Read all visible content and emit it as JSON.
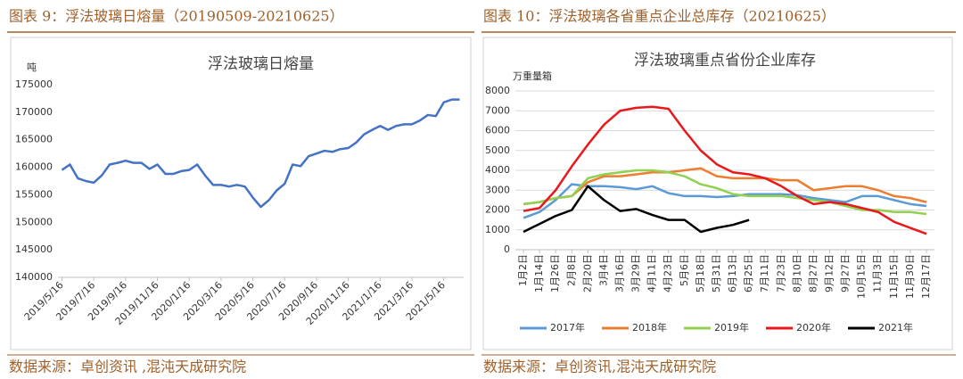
{
  "chart_data": [
    {
      "type": "line",
      "caption": "图表 9：浮法玻璃日熔量（20190509-20210625）",
      "title": "浮法玻璃日熔量",
      "y_label": "吨",
      "source": "数据来源：卓创资讯 ,混沌天成研究院",
      "categories": [
        "2019/5/16",
        null,
        null,
        null,
        "2019/7/16",
        null,
        null,
        null,
        "2019/9/16",
        null,
        null,
        null,
        "2019/11/16",
        null,
        null,
        null,
        "2020/1/16",
        null,
        null,
        null,
        "2020/3/16",
        null,
        null,
        null,
        "2020/5/16",
        null,
        null,
        null,
        "2020/7/16",
        null,
        null,
        null,
        "2020/9/16",
        null,
        null,
        null,
        "2020/11/16",
        null,
        null,
        null,
        "2021/1/16",
        null,
        null,
        null,
        "2021/3/16",
        null,
        null,
        null,
        "2021/5/16",
        null,
        null
      ],
      "values": [
        159500,
        160500,
        158000,
        157500,
        157200,
        158500,
        160500,
        160800,
        161200,
        160800,
        160800,
        159700,
        160500,
        158800,
        158800,
        159300,
        159500,
        160500,
        158500,
        156800,
        156800,
        156500,
        156800,
        156500,
        154500,
        152800,
        154000,
        155800,
        157000,
        160500,
        160200,
        162000,
        162500,
        163000,
        162800,
        163300,
        163500,
        164500,
        166000,
        166800,
        167500,
        166800,
        167500,
        167800,
        167800,
        168500,
        169500,
        169300,
        171800,
        172300,
        172300
      ],
      "color": "#4472c4",
      "ylim": [
        140000,
        175000
      ],
      "yticks": [
        140000,
        145000,
        150000,
        155000,
        160000,
        165000,
        170000,
        175000
      ],
      "grid": false
    },
    {
      "type": "line",
      "caption": "图表 10：浮法玻璃各省重点企业总库存（20210625）",
      "title": "浮法玻璃重点省份企业库存",
      "y_label": "万重量箱",
      "source": "数据来源：卓创资讯,混沌天成研究院",
      "categories": [
        "1月2日",
        "1月14日",
        "1月26日",
        "2月8日",
        "2月20日",
        "3月4日",
        "3月16日",
        "3月29日",
        "4月11日",
        "4月23日",
        "5月6日",
        "5月18日",
        "5月31日",
        "6月13日",
        "6月25日",
        "7月11日",
        "7月23日",
        "8月10日",
        "8月27日",
        "9月12日",
        "9月27日",
        "10月15日",
        "11月3日",
        "11月15日",
        "11月30日",
        "12月17日"
      ],
      "series": [
        {
          "name": "2017年",
          "color": "#5b9bd5",
          "values": [
            1600,
            1900,
            2500,
            3300,
            3200,
            3200,
            3150,
            3050,
            3200,
            2850,
            2700,
            2700,
            2650,
            2700,
            2800,
            2800,
            2800,
            2750,
            2600,
            2500,
            2400,
            2700,
            2700,
            2500,
            2300,
            2200
          ]
        },
        {
          "name": "2018年",
          "color": "#ed7d31",
          "values": [
            2300,
            2400,
            2600,
            2700,
            3400,
            3700,
            3700,
            3800,
            3900,
            3900,
            4000,
            4100,
            3700,
            3600,
            3600,
            3600,
            3500,
            3500,
            3000,
            3100,
            3200,
            3200,
            3000,
            2700,
            2600,
            2400
          ]
        },
        {
          "name": "2019年",
          "color": "#92d050",
          "values": [
            2300,
            2400,
            2600,
            2700,
            3600,
            3800,
            3900,
            4000,
            4000,
            3900,
            3700,
            3300,
            3100,
            2800,
            2700,
            2700,
            2700,
            2600,
            2500,
            2400,
            2200,
            2000,
            2000,
            1900,
            1900,
            1800
          ]
        },
        {
          "name": "2020年",
          "color": "#e8191c",
          "values": [
            1950,
            2100,
            3000,
            4200,
            5300,
            6300,
            7000,
            7150,
            7200,
            7100,
            6000,
            5000,
            4300,
            3900,
            3800,
            3600,
            3200,
            2700,
            2300,
            2400,
            2300,
            2100,
            1900,
            1400,
            1100,
            800
          ]
        },
        {
          "name": "2021年",
          "color": "#000000",
          "values": [
            900,
            1300,
            1700,
            2000,
            3200,
            2500,
            1950,
            2050,
            1750,
            1500,
            1500,
            900,
            1100,
            1250,
            1500,
            null,
            null,
            null,
            null,
            null,
            null,
            null,
            null,
            null,
            null,
            null
          ]
        }
      ],
      "ylim": [
        0,
        8000
      ],
      "yticks": [
        0,
        1000,
        2000,
        3000,
        4000,
        5000,
        6000,
        7000,
        8000
      ],
      "grid": true,
      "legend": "bottom"
    }
  ]
}
